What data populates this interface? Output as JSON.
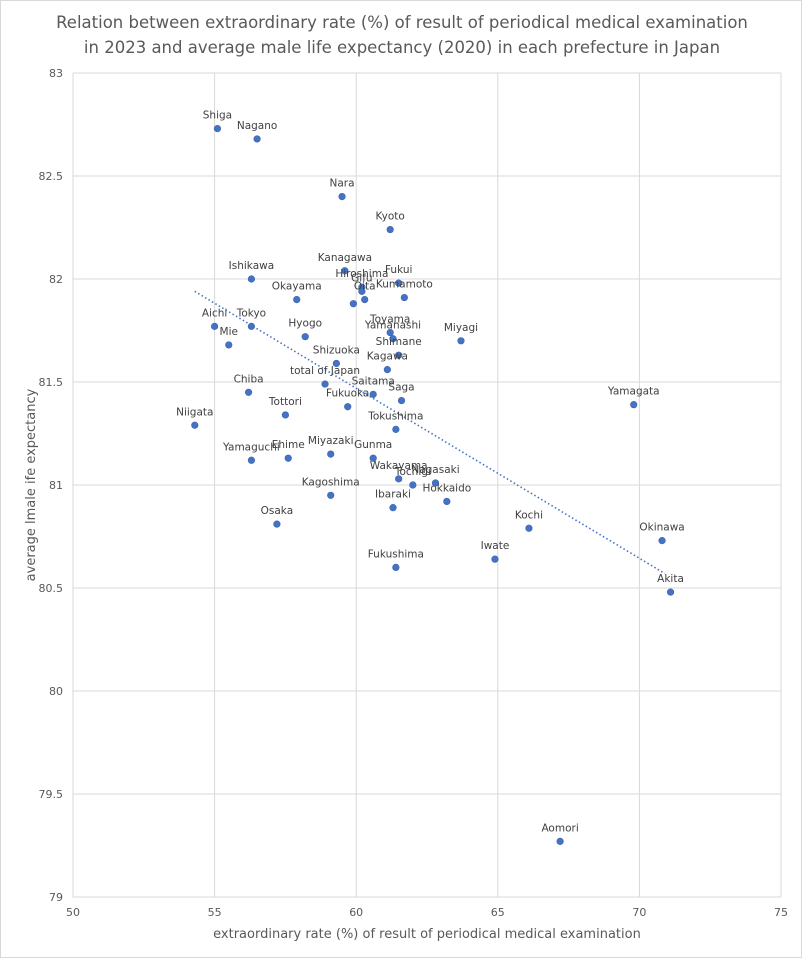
{
  "chart_data": {
    "type": "scatter",
    "title": [
      "Relation between extraordinary rate (%) of result of periodical medical examination",
      "in 2023 and average male life expectancy (2020) in each prefecture in Japan"
    ],
    "xlabel": "extraordinary rate (%) of result of periodical medical examination",
    "ylabel": "average lmale ife expectancy",
    "xlim": [
      50,
      75
    ],
    "ylim": [
      79,
      83
    ],
    "x_ticks": [
      "50",
      "55",
      "60",
      "65",
      "70",
      "75"
    ],
    "y_ticks": [
      "79",
      "79.5",
      "80",
      "80.5",
      "81",
      "81.5",
      "82",
      "82.5",
      "83"
    ],
    "grid": true,
    "legend": "none",
    "point_color": "#4472c4",
    "trendline": {
      "type": "linear",
      "style": "dotted",
      "x_start": 54.3,
      "y_start": 81.94,
      "x_end": 70.9,
      "y_end": 80.57
    },
    "points": [
      {
        "name": "Shiga",
        "x": 55.1,
        "y": 82.73
      },
      {
        "name": "Nagano",
        "x": 56.5,
        "y": 82.68
      },
      {
        "name": "Nara",
        "x": 59.5,
        "y": 82.4
      },
      {
        "name": "Kyoto",
        "x": 61.2,
        "y": 82.24
      },
      {
        "name": "Ishikawa",
        "x": 56.3,
        "y": 82.0
      },
      {
        "name": "Kanagawa",
        "x": 59.6,
        "y": 82.04
      },
      {
        "name": "Fukui",
        "x": 61.5,
        "y": 81.98
      },
      {
        "name": "Hiroshima",
        "x": 60.2,
        "y": 81.96
      },
      {
        "name": "Gifu",
        "x": 60.2,
        "y": 81.94
      },
      {
        "name": "Kumamoto",
        "x": 61.7,
        "y": 81.91
      },
      {
        "name": "Oita",
        "x": 60.3,
        "y": 81.9
      },
      {
        "name": "Okayama",
        "x": 57.9,
        "y": 81.9
      },
      {
        "name": "",
        "x": 59.9,
        "y": 81.88
      },
      {
        "name": "Aichi",
        "x": 55.0,
        "y": 81.77
      },
      {
        "name": "Tokyo",
        "x": 56.3,
        "y": 81.77
      },
      {
        "name": "Toyama",
        "x": 61.2,
        "y": 81.74
      },
      {
        "name": "Hyogo",
        "x": 58.2,
        "y": 81.72
      },
      {
        "name": "Yamanashi",
        "x": 61.3,
        "y": 81.71
      },
      {
        "name": "Miyagi",
        "x": 63.7,
        "y": 81.7
      },
      {
        "name": "Mie",
        "x": 55.5,
        "y": 81.68
      },
      {
        "name": "Shimane",
        "x": 61.5,
        "y": 81.63
      },
      {
        "name": "Shizuoka",
        "x": 59.3,
        "y": 81.59
      },
      {
        "name": "Kagawa",
        "x": 61.1,
        "y": 81.56
      },
      {
        "name": "total of Japan",
        "x": 58.9,
        "y": 81.49
      },
      {
        "name": "Saitama",
        "x": 60.6,
        "y": 81.44
      },
      {
        "name": "Chiba",
        "x": 56.2,
        "y": 81.45
      },
      {
        "name": "Saga",
        "x": 61.6,
        "y": 81.41
      },
      {
        "name": "Yamagata",
        "x": 69.8,
        "y": 81.39
      },
      {
        "name": "Fukuoka",
        "x": 59.7,
        "y": 81.38
      },
      {
        "name": "Tottori",
        "x": 57.5,
        "y": 81.34
      },
      {
        "name": "Niigata",
        "x": 54.3,
        "y": 81.29
      },
      {
        "name": "Tokushima",
        "x": 61.4,
        "y": 81.27
      },
      {
        "name": "Miyazaki",
        "x": 59.1,
        "y": 81.15
      },
      {
        "name": "Ehime",
        "x": 57.6,
        "y": 81.13
      },
      {
        "name": "Gunma",
        "x": 60.6,
        "y": 81.13
      },
      {
        "name": "Yamaguchi",
        "x": 56.3,
        "y": 81.12
      },
      {
        "name": "Wakayama",
        "x": 61.5,
        "y": 81.03
      },
      {
        "name": "Nagasaki",
        "x": 62.8,
        "y": 81.01
      },
      {
        "name": "Tochigi",
        "x": 62.0,
        "y": 81.0
      },
      {
        "name": "Kagoshima",
        "x": 59.1,
        "y": 80.95
      },
      {
        "name": "Hokkaido",
        "x": 63.2,
        "y": 80.92
      },
      {
        "name": "Ibaraki",
        "x": 61.3,
        "y": 80.89
      },
      {
        "name": "Osaka",
        "x": 57.2,
        "y": 80.81
      },
      {
        "name": "Kochi",
        "x": 66.1,
        "y": 80.79
      },
      {
        "name": "Okinawa",
        "x": 70.8,
        "y": 80.73
      },
      {
        "name": "Iwate",
        "x": 64.9,
        "y": 80.64
      },
      {
        "name": "Fukushima",
        "x": 61.4,
        "y": 80.6
      },
      {
        "name": "Akita",
        "x": 71.1,
        "y": 80.48
      },
      {
        "name": "Aomori",
        "x": 67.2,
        "y": 79.27
      }
    ]
  }
}
